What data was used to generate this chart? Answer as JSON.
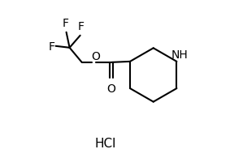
{
  "bg_color": "#ffffff",
  "line_color": "#000000",
  "line_width": 1.5,
  "fig_width": 2.99,
  "fig_height": 2.01,
  "dpi": 100,
  "hcl_text": "HCl",
  "nh_text": "NH",
  "o_ester_text": "O",
  "o_carbonyl_text": "O",
  "f1_text": "F",
  "f2_text": "F",
  "f3_text": "F",
  "label_fontsize": 10,
  "hcl_fontsize": 11
}
